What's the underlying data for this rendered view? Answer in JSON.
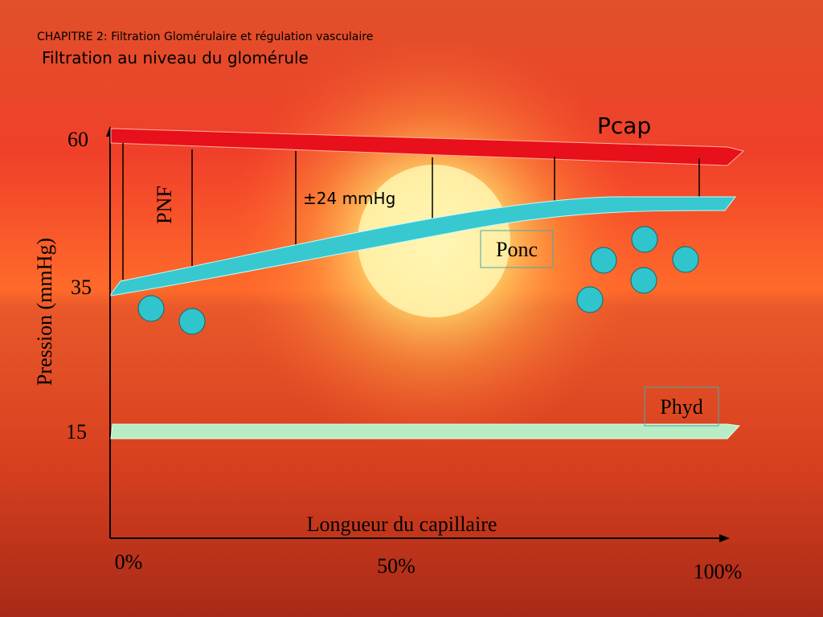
{
  "header": {
    "chapter": "CHAPITRE 2: Filtration Glomérulaire et régulation vasculaire",
    "title": "Filtration au niveau du glomérule"
  },
  "axes": {
    "y_label": "Pression (mmHg)",
    "y_ticks": [
      "60",
      "35",
      "15"
    ],
    "x_label": "Longueur du capillaire",
    "x_ticks": [
      "0%",
      "50%",
      "100%"
    ]
  },
  "labels": {
    "pcap": "Pcap",
    "pnf": "PNF",
    "difference": "±24 mmHg",
    "ponc": "Ponc",
    "phyd": "Phyd"
  }
}
